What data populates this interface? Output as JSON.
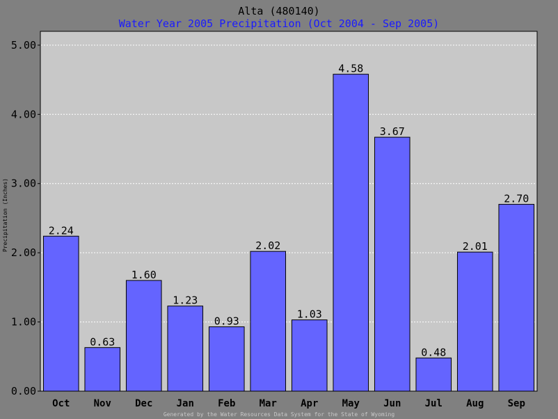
{
  "chart_data": {
    "type": "bar",
    "title": "Alta (480140)",
    "subtitle": "Water Year 2005 Precipitation (Oct 2004 - Sep 2005)",
    "ylabel": "Precipitation (Inches)",
    "xlabel": "",
    "categories": [
      "Oct",
      "Nov",
      "Dec",
      "Jan",
      "Feb",
      "Mar",
      "Apr",
      "May",
      "Jun",
      "Jul",
      "Aug",
      "Sep"
    ],
    "values": [
      2.24,
      0.63,
      1.6,
      1.23,
      0.93,
      2.02,
      1.03,
      4.58,
      3.67,
      0.48,
      2.01,
      2.7
    ],
    "value_labels": [
      "2.24",
      "0.63",
      "1.60",
      "1.23",
      "0.93",
      "2.02",
      "1.03",
      "4.58",
      "3.67",
      "0.48",
      "2.01",
      "2.70"
    ],
    "yticks": [
      0,
      1,
      2,
      3,
      4,
      5
    ],
    "ytick_labels": [
      "0.00",
      "1.00",
      "2.00",
      "3.00",
      "4.00",
      "5.00"
    ],
    "ylim": [
      0,
      5.2
    ],
    "grid": true,
    "legend": "none",
    "colors": {
      "bar": "#6464ff",
      "plot_bg": "#c8c8c8",
      "page_bg": "#808080",
      "subtitle": "#1a1aff",
      "grid": "#ffffff"
    }
  },
  "footer": "Generated by the Water Resources Data System for the State of Wyoming"
}
